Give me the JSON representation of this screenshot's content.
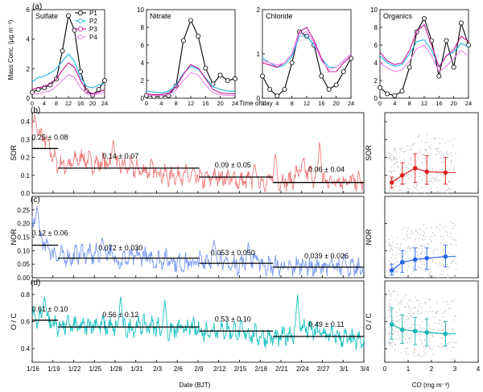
{
  "panel_labels": {
    "a": "(a)",
    "b": "(b)",
    "c": "(c)",
    "d": "(d)"
  },
  "top_row": {
    "ylabel": "Mass Conc. (μg m⁻³)",
    "xlabel": "Time of day",
    "x_ticks": [
      "0",
      "4",
      "8",
      "12",
      "16",
      "20",
      "24"
    ],
    "legend": [
      {
        "name": "P1",
        "color": "#000000"
      },
      {
        "name": "P2",
        "color": "#1fb4e6"
      },
      {
        "name": "P3",
        "color": "#c0148c"
      },
      {
        "name": "P4",
        "color": "#ee82ee"
      }
    ]
  },
  "bottom": {
    "xlabel_left": "Date (BJT)",
    "xlabel_right": "CO (mg m⁻³)"
  },
  "chart_data": [
    {
      "type": "line",
      "title": "Sulfate",
      "xlim": [
        0,
        24
      ],
      "ylim": [
        0,
        6
      ],
      "y_ticks": [
        "0",
        "2",
        "4",
        "6"
      ],
      "x": [
        0,
        2,
        4,
        6,
        8,
        10,
        12,
        14,
        16,
        18,
        20,
        22,
        24
      ],
      "series": [
        {
          "name": "P1",
          "color": "#000000",
          "values": [
            0.4,
            0.6,
            0.7,
            0.9,
            1.3,
            3.2,
            5.6,
            4.6,
            1.8,
            0.5,
            0.2,
            0.6,
            1.2
          ]
        },
        {
          "name": "P2",
          "color": "#1fb4e6",
          "values": [
            1.1,
            1.4,
            1.5,
            1.7,
            2.0,
            2.5,
            3.0,
            2.5,
            1.4,
            0.8,
            0.7,
            0.9,
            1.0
          ]
        },
        {
          "name": "P3",
          "color": "#c0148c",
          "values": [
            0.6,
            0.7,
            0.8,
            1.0,
            1.3,
            1.9,
            2.4,
            2.1,
            1.2,
            0.5,
            0.3,
            0.4,
            0.6
          ]
        },
        {
          "name": "P4",
          "color": "#ee82ee",
          "values": [
            0.3,
            0.3,
            0.4,
            0.5,
            0.8,
            1.2,
            1.6,
            1.4,
            0.7,
            0.3,
            0.2,
            0.3,
            0.4
          ]
        }
      ]
    },
    {
      "type": "line",
      "title": "Nitrate",
      "xlim": [
        0,
        24
      ],
      "ylim": [
        0,
        10
      ],
      "y_ticks": [
        "0",
        "2",
        "4",
        "6",
        "8",
        "10"
      ],
      "x": [
        0,
        2,
        4,
        6,
        8,
        10,
        12,
        14,
        16,
        18,
        20,
        22,
        24
      ],
      "series": [
        {
          "name": "P1",
          "color": "#000000",
          "values": [
            0.3,
            0.2,
            0.2,
            0.3,
            1.4,
            6.5,
            8.8,
            7.0,
            3.4,
            1.6,
            2.6,
            2.0,
            2.2
          ]
        },
        {
          "name": "P2",
          "color": "#1fb4e6",
          "values": [
            0.8,
            0.7,
            0.6,
            0.8,
            1.5,
            2.8,
            3.6,
            3.3,
            2.3,
            1.3,
            1.0,
            0.8,
            0.8
          ]
        },
        {
          "name": "P3",
          "color": "#c0148c",
          "values": [
            0.5,
            0.4,
            0.4,
            0.6,
            1.3,
            2.7,
            3.8,
            3.4,
            2.2,
            1.0,
            0.6,
            0.5,
            0.5
          ]
        },
        {
          "name": "P4",
          "color": "#ee82ee",
          "values": [
            0.3,
            0.3,
            0.3,
            0.4,
            0.9,
            2.0,
            2.9,
            2.6,
            1.5,
            0.6,
            0.4,
            0.3,
            0.3
          ]
        }
      ]
    },
    {
      "type": "line",
      "title": "Chloride",
      "xlim": [
        0,
        24
      ],
      "ylim": [
        0,
        2
      ],
      "y_ticks": [
        "0",
        "1",
        "2"
      ],
      "x": [
        0,
        2,
        4,
        6,
        8,
        10,
        12,
        14,
        16,
        18,
        20,
        22,
        24
      ],
      "series": [
        {
          "name": "P1",
          "color": "#000000",
          "values": [
            0.5,
            0.2,
            0.05,
            0.2,
            0.8,
            1.5,
            1.4,
            1.2,
            0.5,
            0.2,
            0.3,
            0.6,
            0.9
          ]
        },
        {
          "name": "P2",
          "color": "#1fb4e6",
          "values": [
            0.9,
            0.8,
            0.7,
            0.75,
            0.95,
            1.4,
            1.4,
            1.2,
            0.9,
            0.7,
            0.7,
            0.85,
            1.0
          ]
        },
        {
          "name": "P3",
          "color": "#c0148c",
          "values": [
            0.8,
            0.75,
            0.7,
            0.8,
            1.0,
            1.5,
            1.6,
            1.3,
            0.9,
            0.6,
            0.6,
            0.8,
            0.95
          ]
        },
        {
          "name": "P4",
          "color": "#ee82ee",
          "values": [
            0.85,
            0.8,
            0.75,
            0.8,
            1.0,
            1.45,
            1.5,
            1.25,
            0.85,
            0.65,
            0.7,
            0.85,
            1.0
          ]
        }
      ]
    },
    {
      "type": "line",
      "title": "Organics",
      "xlim": [
        0,
        24
      ],
      "ylim": [
        0,
        10
      ],
      "y_ticks": [
        "0",
        "2",
        "4",
        "6",
        "8",
        "10"
      ],
      "x": [
        0,
        2,
        4,
        6,
        8,
        10,
        12,
        14,
        16,
        18,
        20,
        22,
        24
      ],
      "series": [
        {
          "name": "P1",
          "color": "#000000",
          "values": [
            1.2,
            0.5,
            0.3,
            0.8,
            3.5,
            7.5,
            9.0,
            6.5,
            2.5,
            6.5,
            3.5,
            8.5,
            6.0
          ]
        },
        {
          "name": "P2",
          "color": "#1fb4e6",
          "values": [
            4.8,
            4.0,
            3.6,
            3.8,
            5.0,
            6.4,
            6.6,
            5.4,
            3.6,
            4.8,
            5.2,
            6.2,
            5.8
          ]
        },
        {
          "name": "P3",
          "color": "#c0148c",
          "values": [
            5.2,
            4.2,
            3.8,
            4.0,
            5.4,
            7.6,
            8.3,
            6.0,
            3.5,
            4.8,
            5.5,
            7.0,
            6.4
          ]
        },
        {
          "name": "P4",
          "color": "#ee82ee",
          "values": [
            4.0,
            3.4,
            3.0,
            3.2,
            4.2,
            5.6,
            6.0,
            4.8,
            3.0,
            3.6,
            4.5,
            5.4,
            4.8
          ]
        }
      ]
    },
    {
      "type": "line",
      "ylabel": "SOR",
      "ylim": [
        0,
        0.45
      ],
      "y_ticks": [
        "0.0",
        "0.1",
        "0.2",
        "0.3",
        "0.4"
      ],
      "x_ticks": [
        "1/16",
        "1/19",
        "1/22",
        "1/25",
        "1/28",
        "1/31",
        "2/3",
        "2/6",
        "2/9",
        "2/12",
        "2/15",
        "2/18",
        "2/21",
        "2/24",
        "2/27",
        "3/1",
        "3/4"
      ],
      "color": "#f07f7f",
      "series_knots": [
        [
          0,
          0.36
        ],
        [
          1,
          0.3
        ],
        [
          2,
          0.16
        ],
        [
          3,
          0.15
        ],
        [
          4,
          0.2
        ],
        [
          5,
          0.16
        ],
        [
          6,
          0.17
        ],
        [
          7,
          0.15
        ],
        [
          8,
          0.14
        ],
        [
          9,
          0.12
        ],
        [
          10,
          0.13
        ],
        [
          11,
          0.09
        ],
        [
          12,
          0.1
        ],
        [
          13,
          0.09
        ],
        [
          14,
          0.07
        ],
        [
          15,
          0.09
        ],
        [
          16,
          0.08
        ],
        [
          17,
          0.06
        ],
        [
          18,
          0.07
        ],
        [
          19,
          0.06
        ],
        [
          20,
          0.07
        ],
        [
          21,
          0.06
        ],
        [
          22,
          0.14
        ],
        [
          23,
          0.08
        ],
        [
          24,
          0.06
        ],
        [
          25,
          0.07
        ],
        [
          26,
          0.06
        ],
        [
          27,
          0.06
        ]
      ],
      "spikes": [
        [
          0.2,
          0.44
        ],
        [
          6.6,
          0.3
        ],
        [
          18.1,
          0.17
        ],
        [
          19.8,
          0.23
        ],
        [
          23.4,
          0.3
        ]
      ],
      "periods": [
        {
          "start": 0,
          "end": 2.1,
          "mean": 0.25,
          "label": "0.25 ± 0.08"
        },
        {
          "start": 2.1,
          "end": 13.6,
          "mean": 0.14,
          "label": "0.14 ± 0.07"
        },
        {
          "start": 13.6,
          "end": 19.6,
          "mean": 0.09,
          "label": "0.09 ± 0.05"
        },
        {
          "start": 19.6,
          "end": 27,
          "mean": 0.06,
          "label": "0.06 ± 0.04"
        }
      ]
    },
    {
      "type": "line",
      "ylabel": "NOR",
      "ylim": [
        0,
        0.3
      ],
      "y_ticks": [
        "0.00",
        "0.05",
        "0.10",
        "0.15",
        "0.20",
        "0.25"
      ],
      "x_ticks": [
        "1/16",
        "1/19",
        "1/22",
        "1/25",
        "1/28",
        "1/31",
        "2/3",
        "2/6",
        "2/9",
        "2/12",
        "2/15",
        "2/18",
        "2/21",
        "2/24",
        "2/27",
        "3/1",
        "3/4"
      ],
      "color": "#7a9bf0",
      "series_knots": [
        [
          0,
          0.2
        ],
        [
          1,
          0.12
        ],
        [
          2,
          0.08
        ],
        [
          3,
          0.07
        ],
        [
          4,
          0.09
        ],
        [
          5,
          0.08
        ],
        [
          6,
          0.1
        ],
        [
          7,
          0.06
        ],
        [
          8,
          0.07
        ],
        [
          9,
          0.08
        ],
        [
          10,
          0.06
        ],
        [
          11,
          0.07
        ],
        [
          12,
          0.05
        ],
        [
          13,
          0.05
        ],
        [
          14,
          0.06
        ],
        [
          15,
          0.08
        ],
        [
          16,
          0.04
        ],
        [
          17,
          0.05
        ],
        [
          18,
          0.07
        ],
        [
          19,
          0.04
        ],
        [
          20,
          0.04
        ],
        [
          21,
          0.03
        ],
        [
          22,
          0.05
        ],
        [
          23,
          0.03
        ],
        [
          24,
          0.04
        ],
        [
          25,
          0.03
        ],
        [
          26,
          0.03
        ],
        [
          27,
          0.03
        ]
      ],
      "spikes": [
        [
          0.4,
          0.27
        ],
        [
          5.7,
          0.15
        ],
        [
          14.8,
          0.14
        ],
        [
          17.6,
          0.13
        ],
        [
          25.4,
          0.09
        ]
      ],
      "periods": [
        {
          "start": 0,
          "end": 2.1,
          "mean": 0.12,
          "label": "0.12 ± 0.06"
        },
        {
          "start": 2.1,
          "end": 13.6,
          "mean": 0.072,
          "label": "0.072 ± 0.030"
        },
        {
          "start": 13.6,
          "end": 19.6,
          "mean": 0.053,
          "label": "0.053 ± 0.050"
        },
        {
          "start": 19.6,
          "end": 27,
          "mean": 0.039,
          "label": "0.039 ± 0.026"
        }
      ]
    },
    {
      "type": "line",
      "ylabel": "O / C",
      "ylim": [
        0.3,
        0.9
      ],
      "y_ticks": [
        "0.4",
        "0.6",
        "0.8"
      ],
      "x_ticks": [
        "1/16",
        "1/19",
        "1/22",
        "1/25",
        "1/28",
        "1/31",
        "2/3",
        "2/6",
        "2/9",
        "2/12",
        "2/15",
        "2/18",
        "2/21",
        "2/24",
        "2/27",
        "3/1",
        "3/4"
      ],
      "color": "#1ec2c2",
      "series_knots": [
        [
          0,
          0.62
        ],
        [
          1,
          0.63
        ],
        [
          2,
          0.56
        ],
        [
          3,
          0.57
        ],
        [
          4,
          0.55
        ],
        [
          5,
          0.58
        ],
        [
          6,
          0.56
        ],
        [
          7,
          0.54
        ],
        [
          8,
          0.55
        ],
        [
          9,
          0.57
        ],
        [
          10,
          0.56
        ],
        [
          11,
          0.52
        ],
        [
          12,
          0.54
        ],
        [
          13,
          0.55
        ],
        [
          14,
          0.52
        ],
        [
          15,
          0.54
        ],
        [
          16,
          0.53
        ],
        [
          17,
          0.52
        ],
        [
          18,
          0.5
        ],
        [
          19,
          0.48
        ],
        [
          20,
          0.47
        ],
        [
          21,
          0.5
        ],
        [
          22,
          0.55
        ],
        [
          23,
          0.52
        ],
        [
          24,
          0.5
        ],
        [
          25,
          0.48
        ],
        [
          26,
          0.46
        ],
        [
          27,
          0.44
        ]
      ],
      "spikes": [
        [
          1.0,
          0.79
        ],
        [
          7.2,
          0.8
        ],
        [
          10.8,
          0.76
        ],
        [
          21.6,
          0.8
        ]
      ],
      "periods": [
        {
          "start": 0,
          "end": 2.1,
          "mean": 0.61,
          "label": "0.61 ± 0.10"
        },
        {
          "start": 2.1,
          "end": 13.6,
          "mean": 0.56,
          "label": "0.56 ± 0.12"
        },
        {
          "start": 13.6,
          "end": 19.6,
          "mean": 0.53,
          "label": "0.53 ± 0.10"
        },
        {
          "start": 19.6,
          "end": 27,
          "mean": 0.49,
          "label": "0.49 ± 0.11"
        }
      ]
    },
    {
      "type": "scatter",
      "ylabel": "SOR",
      "xlabel": "CO (mg m⁻³)",
      "xlim": [
        0,
        4
      ],
      "ylim": [
        0,
        0.45
      ],
      "x_ticks": [
        "0",
        "1",
        "2",
        "3",
        "4"
      ],
      "y_ticks": [
        "0.0",
        "0.1",
        "0.2",
        "0.3",
        "0.4"
      ],
      "color": "#e02020",
      "binned": [
        {
          "x": 0.3,
          "y": 0.06,
          "lo": 0.03,
          "hi": 0.09
        },
        {
          "x": 0.75,
          "y": 0.1,
          "lo": 0.05,
          "hi": 0.17
        },
        {
          "x": 1.3,
          "y": 0.14,
          "lo": 0.06,
          "hi": 0.22
        },
        {
          "x": 1.8,
          "y": 0.12,
          "lo": 0.05,
          "hi": 0.21
        },
        {
          "x": 2.6,
          "y": 0.115,
          "lo": 0.05,
          "hi": 0.2
        }
      ]
    },
    {
      "type": "scatter",
      "ylabel": "NOR",
      "xlabel": "CO (mg m⁻³)",
      "xlim": [
        0,
        4
      ],
      "ylim": [
        0,
        0.3
      ],
      "x_ticks": [
        "0",
        "1",
        "2",
        "3",
        "4"
      ],
      "y_ticks": [
        "0.00",
        "0.10",
        "0.20"
      ],
      "color": "#2563eb",
      "binned": [
        {
          "x": 0.3,
          "y": 0.027,
          "lo": 0.01,
          "hi": 0.05
        },
        {
          "x": 0.75,
          "y": 0.057,
          "lo": 0.02,
          "hi": 0.1
        },
        {
          "x": 1.3,
          "y": 0.067,
          "lo": 0.03,
          "hi": 0.11
        },
        {
          "x": 1.8,
          "y": 0.072,
          "lo": 0.03,
          "hi": 0.11
        },
        {
          "x": 2.6,
          "y": 0.078,
          "lo": 0.04,
          "hi": 0.12
        }
      ]
    },
    {
      "type": "scatter",
      "ylabel": "O / C",
      "xlabel": "CO (mg m⁻³)",
      "xlim": [
        0,
        4
      ],
      "ylim": [
        0.3,
        0.9
      ],
      "x_ticks": [
        "0",
        "1",
        "2",
        "3",
        "4"
      ],
      "y_ticks": [
        "0.4",
        "0.6",
        "0.8"
      ],
      "color": "#17b3b3",
      "binned": [
        {
          "x": 0.3,
          "y": 0.58,
          "lo": 0.47,
          "hi": 0.7
        },
        {
          "x": 0.75,
          "y": 0.54,
          "lo": 0.44,
          "hi": 0.65
        },
        {
          "x": 1.3,
          "y": 0.53,
          "lo": 0.43,
          "hi": 0.63
        },
        {
          "x": 1.8,
          "y": 0.52,
          "lo": 0.42,
          "hi": 0.62
        },
        {
          "x": 2.6,
          "y": 0.51,
          "lo": 0.42,
          "hi": 0.6
        }
      ]
    }
  ]
}
